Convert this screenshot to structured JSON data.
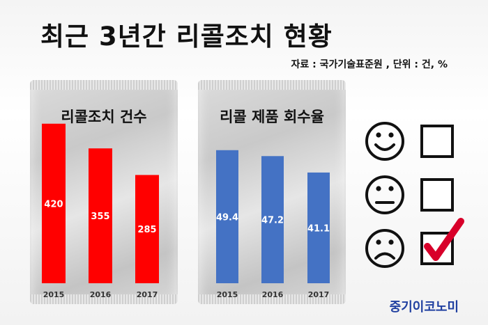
{
  "title": "최근 3년간 리콜조치 현황",
  "source": "자료 : 국가기술표준원 , 단위 : 건, %",
  "brand": "중기이코노미",
  "icons": [
    "happy-face-icon",
    "neutral-face-icon",
    "sad-face-icon",
    "checkbox-empty-icon",
    "checkbox-empty-icon",
    "checkbox-checked-icon"
  ],
  "chart_data": [
    {
      "type": "bar",
      "title": "리콜조치 건수",
      "categories": [
        "2015",
        "2016",
        "2017"
      ],
      "values": [
        420,
        355,
        285
      ],
      "value_labels": [
        "420",
        "355",
        "285"
      ],
      "color": "#ff0000",
      "ylim": [
        0,
        480
      ]
    },
    {
      "type": "bar",
      "title": "리콜 제품 회수율",
      "categories": [
        "2015",
        "2016",
        "2017"
      ],
      "values": [
        49.4,
        47.2,
        41.1
      ],
      "value_labels": [
        "49.4",
        "47.2",
        "41.1"
      ],
      "color": "#4472c4",
      "ylim": [
        0,
        62
      ]
    }
  ]
}
